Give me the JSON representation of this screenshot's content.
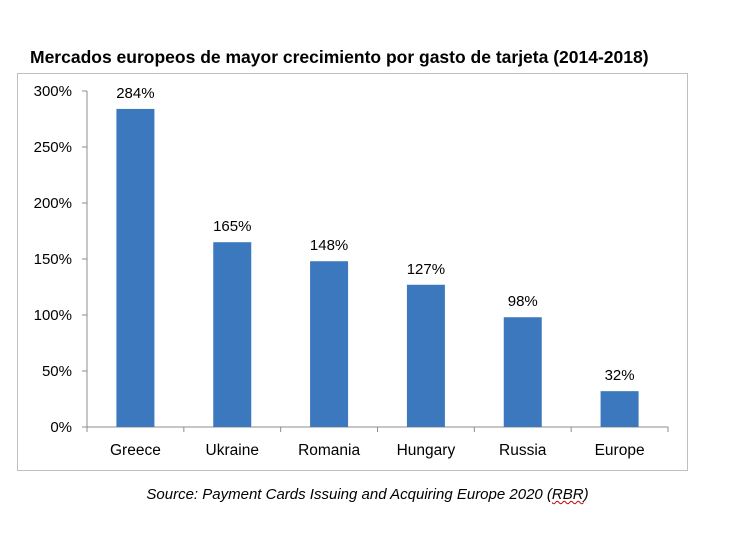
{
  "chart_data": {
    "type": "bar",
    "title": "Mercados europeos de mayor crecimiento por gasto de tarjeta (2014-2018)",
    "categories": [
      "Greece",
      "Ukraine",
      "Romania",
      "Hungary",
      "Russia",
      "Europe"
    ],
    "values": [
      284,
      165,
      148,
      127,
      98,
      32
    ],
    "value_labels": [
      "284%",
      "165%",
      "148%",
      "127%",
      "98%",
      "32%"
    ],
    "y_ticks": [
      "0%",
      "50%",
      "100%",
      "150%",
      "200%",
      "250%",
      "300%"
    ],
    "ylim": [
      0,
      300
    ],
    "bar_color": "#3c78bd",
    "grid": false,
    "legend": "none",
    "xlabel": "",
    "ylabel": ""
  },
  "source": {
    "prefix": "Source: Payment Cards Issuing and Acquiring Europe 2020 (",
    "tag": "RBR",
    "suffix": ")"
  }
}
